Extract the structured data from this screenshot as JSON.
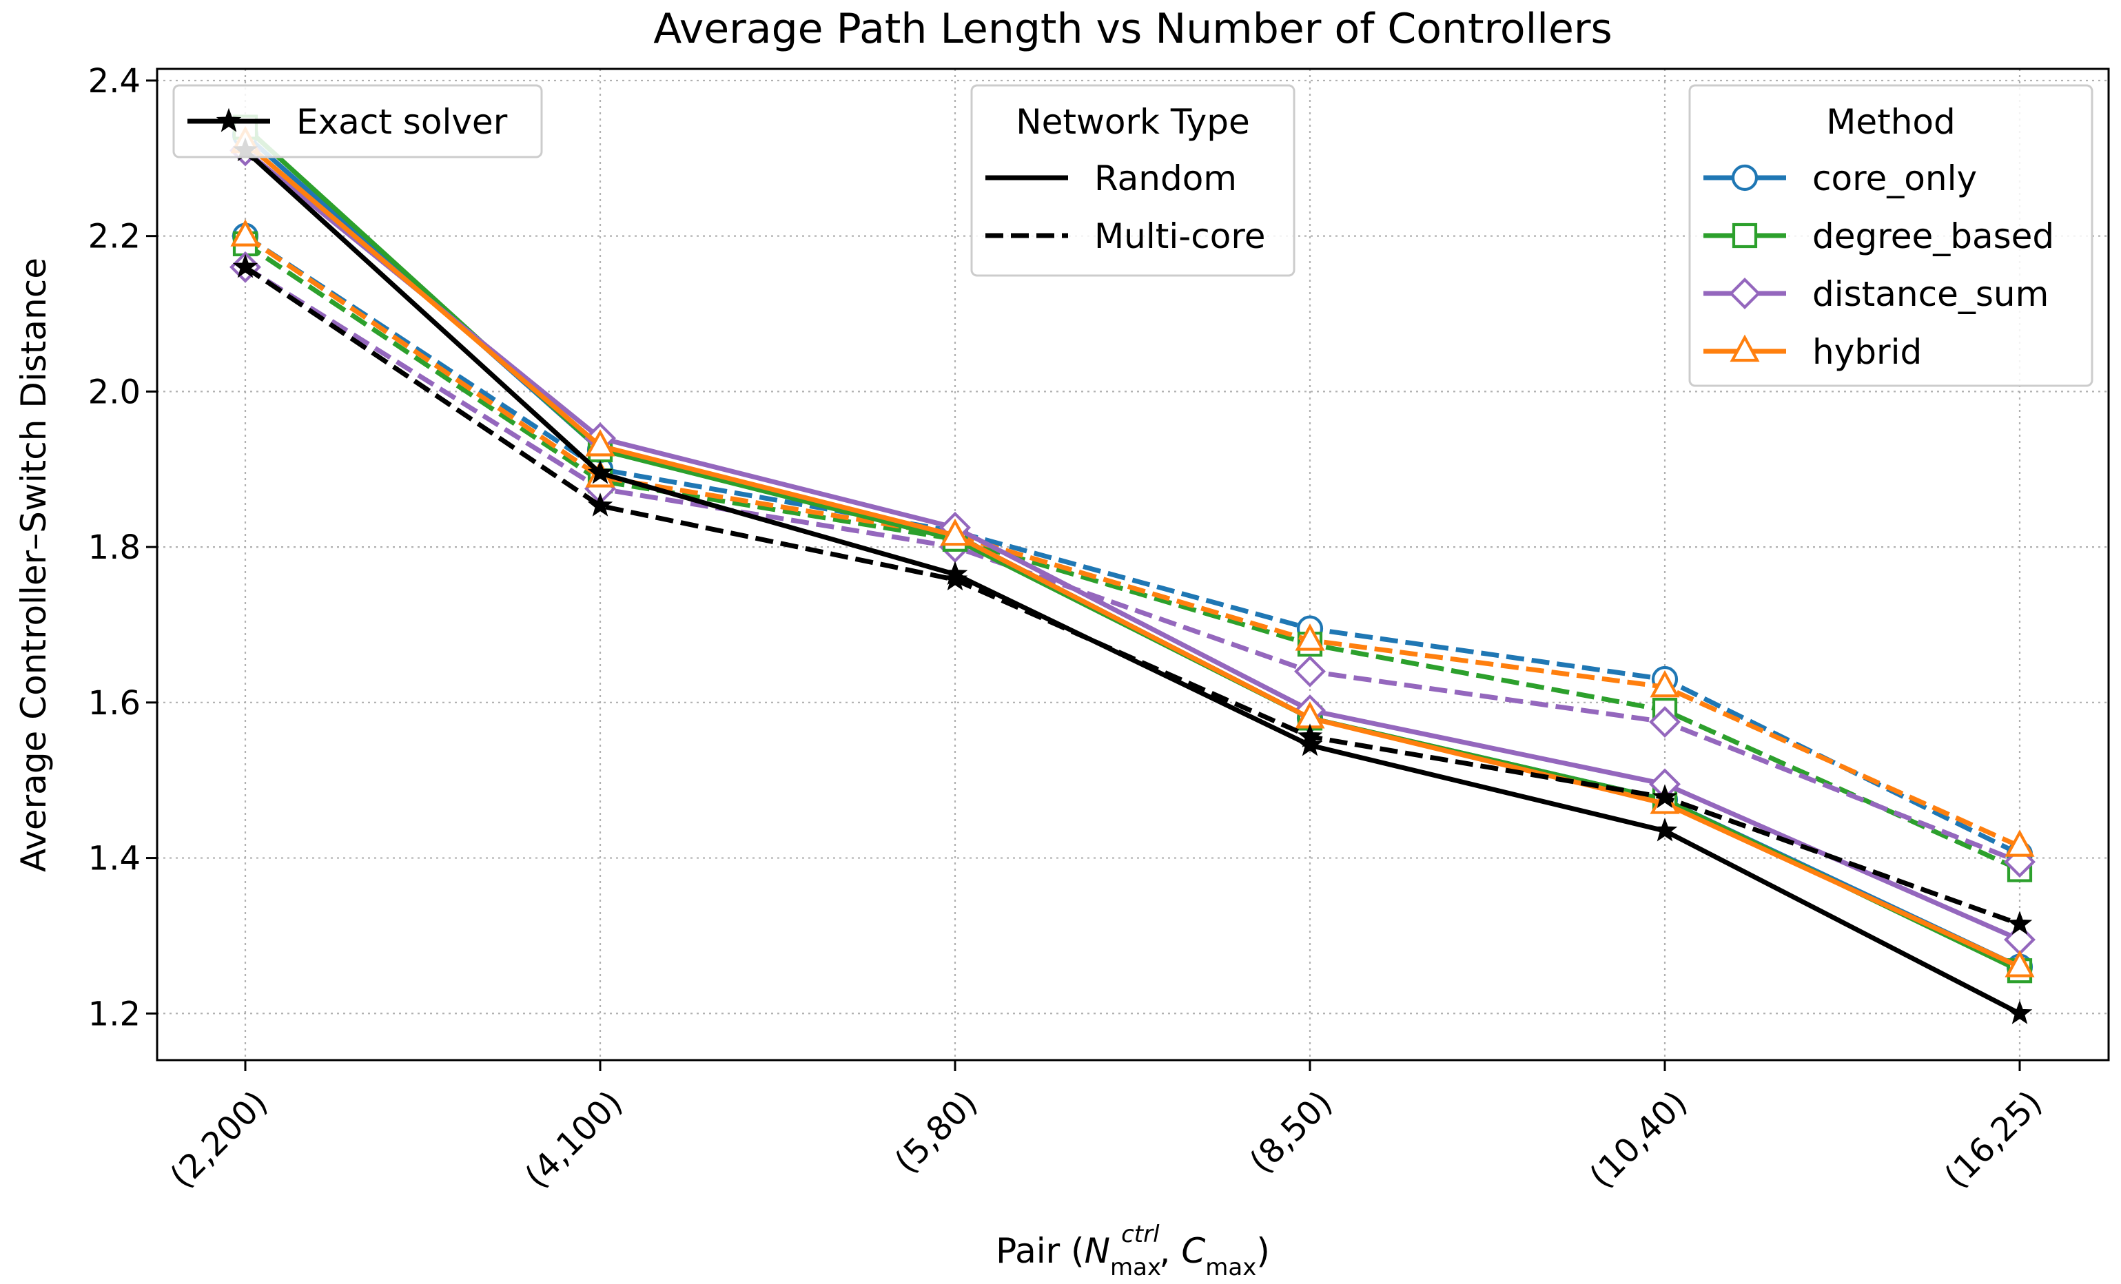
{
  "chart_data": {
    "type": "line",
    "title": "Average Path Length vs Number of Controllers",
    "xlabel": "Pair (N_max^ctrl, C_max)",
    "ylabel": "Average Controller–Switch Distance",
    "categories": [
      "(2,200)",
      "(4,100)",
      "(5,80)",
      "(8,50)",
      "(10,40)",
      "(16,25)"
    ],
    "ylim": [
      1.14,
      2.415
    ],
    "yticks": [
      1.2,
      1.4,
      1.6,
      1.8,
      2.0,
      2.2,
      2.4
    ],
    "ytick_labels": [
      "1.2",
      "1.4",
      "1.6",
      "1.8",
      "2.0",
      "2.2",
      "2.4"
    ],
    "grid": true,
    "colors": {
      "core_only": "#1f77b4",
      "degree_based": "#2ca02c",
      "distance_sum": "#9467bd",
      "hybrid": "#ff7f0e",
      "exact": "#000000"
    },
    "series": [
      {
        "method": "core_only",
        "network": "Multi-core",
        "marker": "circle",
        "values": [
          2.2,
          1.9,
          1.82,
          1.695,
          1.63,
          1.405
        ]
      },
      {
        "method": "degree_based",
        "network": "Multi-core",
        "marker": "square",
        "values": [
          2.19,
          1.885,
          1.81,
          1.675,
          1.59,
          1.385
        ]
      },
      {
        "method": "distance_sum",
        "network": "Multi-core",
        "marker": "diamond",
        "values": [
          2.16,
          1.875,
          1.8,
          1.64,
          1.575,
          1.395
        ]
      },
      {
        "method": "hybrid",
        "network": "Multi-core",
        "marker": "triangle",
        "values": [
          2.2,
          1.89,
          1.815,
          1.68,
          1.62,
          1.415
        ]
      },
      {
        "method": "exact",
        "network": "Multi-core",
        "marker": "star",
        "values": [
          2.16,
          1.853,
          1.758,
          1.556,
          1.478,
          1.315
        ]
      },
      {
        "method": "core_only",
        "network": "Random",
        "marker": "circle",
        "values": [
          2.33,
          1.925,
          1.815,
          1.58,
          1.475,
          1.26
        ]
      },
      {
        "method": "degree_based",
        "network": "Random",
        "marker": "square",
        "values": [
          2.34,
          1.925,
          1.81,
          1.58,
          1.475,
          1.255
        ]
      },
      {
        "method": "distance_sum",
        "network": "Random",
        "marker": "diamond",
        "values": [
          2.31,
          1.94,
          1.825,
          1.59,
          1.495,
          1.295
        ]
      },
      {
        "method": "hybrid",
        "network": "Random",
        "marker": "triangle",
        "values": [
          2.32,
          1.93,
          1.815,
          1.58,
          1.47,
          1.26
        ]
      },
      {
        "method": "exact",
        "network": "Random",
        "marker": "star",
        "values": [
          2.31,
          1.895,
          1.765,
          1.545,
          1.435,
          1.2
        ]
      }
    ],
    "legends": {
      "exact": {
        "label": "Exact solver",
        "placement": "top-left"
      },
      "network": {
        "title": "Network Type",
        "placement": "top-center",
        "entries": [
          {
            "label": "Random",
            "style": "solid"
          },
          {
            "label": "Multi-core",
            "style": "dashed"
          }
        ]
      },
      "method": {
        "title": "Method",
        "placement": "top-right",
        "entries": [
          {
            "label": "core_only",
            "key": "core_only",
            "marker": "circle"
          },
          {
            "label": "degree_based",
            "key": "degree_based",
            "marker": "square"
          },
          {
            "label": "distance_sum",
            "key": "distance_sum",
            "marker": "diamond"
          },
          {
            "label": "hybrid",
            "key": "hybrid",
            "marker": "triangle"
          }
        ]
      }
    }
  }
}
